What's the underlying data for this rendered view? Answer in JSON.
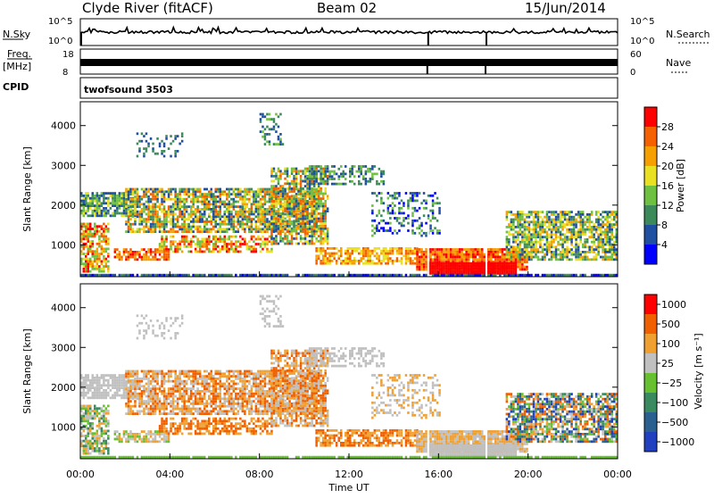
{
  "header": {
    "title": "Clyde River (fitACF)",
    "beam": "Beam 02",
    "date": "15/Jun/2014"
  },
  "status_panels": {
    "nsky_label": "N.Sky",
    "nsky_ticks": [
      "10^5",
      "10^0"
    ],
    "nsearch_label": "N.Search",
    "nsearch_ticks": [
      "10^5",
      "10^0"
    ],
    "freq_label": "Freq.",
    "freq_unit": "[MHz]",
    "freq_ticks": [
      "18",
      "8"
    ],
    "nave_label": "Nave",
    "nave_ticks": [
      "60",
      "0"
    ],
    "cpid_label": "CPID",
    "cpid_value": "twofsound 3503"
  },
  "colors": {
    "power_scale": [
      "#0000ff",
      "#1e4fa0",
      "#3c8a5a",
      "#6ec040",
      "#e8e020",
      "#f5a000",
      "#f56000",
      "#ff0000"
    ],
    "velocity_scale": [
      "#2040c0",
      "#2a6090",
      "#3a8a60",
      "#66c030",
      "#c0c0c0",
      "#f0a030",
      "#f06000",
      "#ff0000"
    ]
  },
  "chart_data": [
    {
      "type": "heatmap",
      "panel": "power",
      "ylabel": "Slant Range [km]",
      "xlabel": "Time UT",
      "x_ticks": [
        "00:00",
        "04:00",
        "08:00",
        "12:00",
        "16:00",
        "20:00",
        "00:00"
      ],
      "y_ticks": [
        1000,
        2000,
        3000,
        4000
      ],
      "ylim": [
        200,
        4600
      ],
      "xlim_hours": [
        0,
        24
      ],
      "colorbar_label": "Power [dB]",
      "colorbar_ticks": [
        "4",
        "8",
        "12",
        "16",
        "20",
        "24",
        "28"
      ],
      "colorbar_range": [
        0,
        32
      ]
    },
    {
      "type": "heatmap",
      "panel": "velocity",
      "ylabel": "Slant Range [km]",
      "xlabel": "Time UT",
      "x_ticks": [
        "00:00",
        "04:00",
        "08:00",
        "12:00",
        "16:00",
        "20:00",
        "00:00"
      ],
      "y_ticks": [
        1000,
        2000,
        3000,
        4000
      ],
      "ylim": [
        200,
        4600
      ],
      "xlim_hours": [
        0,
        24
      ],
      "colorbar_label": "Velocity [m s⁻¹]",
      "colorbar_ticks": [
        "1000",
        "500",
        "100",
        "25",
        "−25",
        "−100",
        "−500",
        "−1000"
      ]
    }
  ]
}
